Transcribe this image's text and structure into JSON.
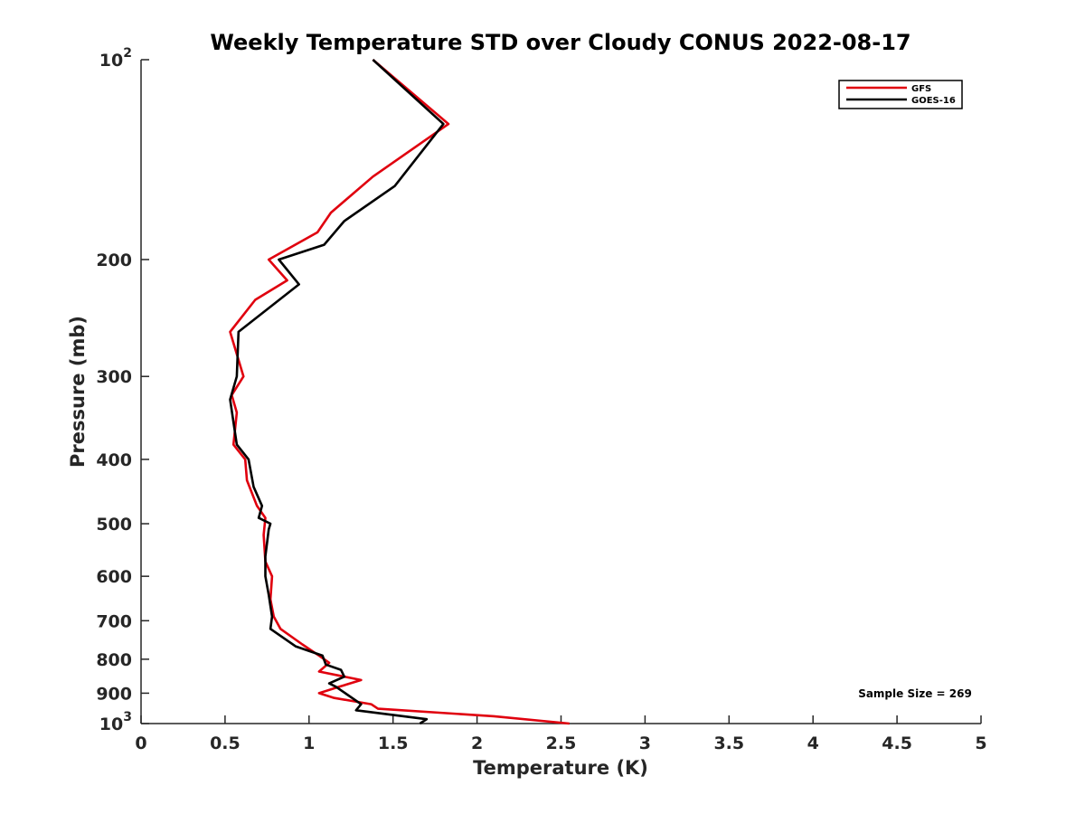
{
  "chart_data": {
    "type": "line",
    "title": "Weekly Temperature STD over Cloudy CONUS 2022-08-17",
    "xlabel": "Temperature (K)",
    "ylabel": "Pressure (mb)",
    "xlim": [
      0,
      5
    ],
    "ylim": [
      100,
      1000
    ],
    "y_scale": "log",
    "y_direction": "reversed",
    "grid": false,
    "legend_position": "top-right",
    "x_ticks": [
      {
        "value": 0,
        "label": "0"
      },
      {
        "value": 0.5,
        "label": "0.5"
      },
      {
        "value": 1,
        "label": "1"
      },
      {
        "value": 1.5,
        "label": "1.5"
      },
      {
        "value": 2,
        "label": "2"
      },
      {
        "value": 2.5,
        "label": "2.5"
      },
      {
        "value": 3,
        "label": "3"
      },
      {
        "value": 3.5,
        "label": "3.5"
      },
      {
        "value": 4,
        "label": "4"
      },
      {
        "value": 4.5,
        "label": "4.5"
      },
      {
        "value": 5,
        "label": "5"
      }
    ],
    "y_ticks": [
      {
        "value": 100,
        "base": "10",
        "exp": "2"
      },
      {
        "value": 200,
        "label": "200"
      },
      {
        "value": 300,
        "label": "300"
      },
      {
        "value": 400,
        "label": "400"
      },
      {
        "value": 500,
        "label": "500"
      },
      {
        "value": 600,
        "label": "600"
      },
      {
        "value": 700,
        "label": "700"
      },
      {
        "value": 800,
        "label": "800"
      },
      {
        "value": 900,
        "label": "900"
      },
      {
        "value": 1000,
        "base": "10",
        "exp": "3"
      }
    ],
    "series": [
      {
        "name": "GFS",
        "color": "#e0000e",
        "points": [
          [
            1.38,
            100
          ],
          [
            1.83,
            125
          ],
          [
            1.38,
            150
          ],
          [
            1.13,
            170
          ],
          [
            1.05,
            182
          ],
          [
            0.76,
            200
          ],
          [
            0.87,
            215
          ],
          [
            0.68,
            230
          ],
          [
            0.53,
            257
          ],
          [
            0.61,
            300
          ],
          [
            0.54,
            320
          ],
          [
            0.57,
            340
          ],
          [
            0.55,
            380
          ],
          [
            0.62,
            400
          ],
          [
            0.63,
            430
          ],
          [
            0.69,
            470
          ],
          [
            0.74,
            490
          ],
          [
            0.73,
            520
          ],
          [
            0.74,
            570
          ],
          [
            0.78,
            600
          ],
          [
            0.77,
            650
          ],
          [
            0.79,
            690
          ],
          [
            0.83,
            720
          ],
          [
            0.96,
            760
          ],
          [
            1.06,
            790
          ],
          [
            1.12,
            810
          ],
          [
            1.06,
            835
          ],
          [
            1.31,
            860
          ],
          [
            1.18,
            880
          ],
          [
            1.06,
            900
          ],
          [
            1.15,
            915
          ],
          [
            1.37,
            935
          ],
          [
            1.41,
            950
          ],
          [
            2.1,
            975
          ],
          [
            2.55,
            1000
          ]
        ]
      },
      {
        "name": "GOES-16",
        "color": "#000000",
        "points": [
          [
            1.38,
            100
          ],
          [
            1.8,
            125
          ],
          [
            1.51,
            155
          ],
          [
            1.21,
            175
          ],
          [
            1.09,
            190
          ],
          [
            0.82,
            200
          ],
          [
            0.94,
            218
          ],
          [
            0.58,
            257
          ],
          [
            0.57,
            300
          ],
          [
            0.53,
            325
          ],
          [
            0.57,
            380
          ],
          [
            0.64,
            400
          ],
          [
            0.67,
            440
          ],
          [
            0.72,
            470
          ],
          [
            0.7,
            490
          ],
          [
            0.77,
            500
          ],
          [
            0.76,
            510
          ],
          [
            0.74,
            560
          ],
          [
            0.74,
            600
          ],
          [
            0.76,
            640
          ],
          [
            0.78,
            690
          ],
          [
            0.77,
            720
          ],
          [
            0.92,
            765
          ],
          [
            1.08,
            790
          ],
          [
            1.1,
            815
          ],
          [
            1.19,
            830
          ],
          [
            1.21,
            850
          ],
          [
            1.12,
            870
          ],
          [
            1.16,
            880
          ],
          [
            1.31,
            935
          ],
          [
            1.28,
            955
          ],
          [
            1.7,
            985
          ],
          [
            1.66,
            1000
          ]
        ]
      }
    ],
    "annotations": [
      {
        "text": "Sample Size = 269"
      }
    ]
  }
}
